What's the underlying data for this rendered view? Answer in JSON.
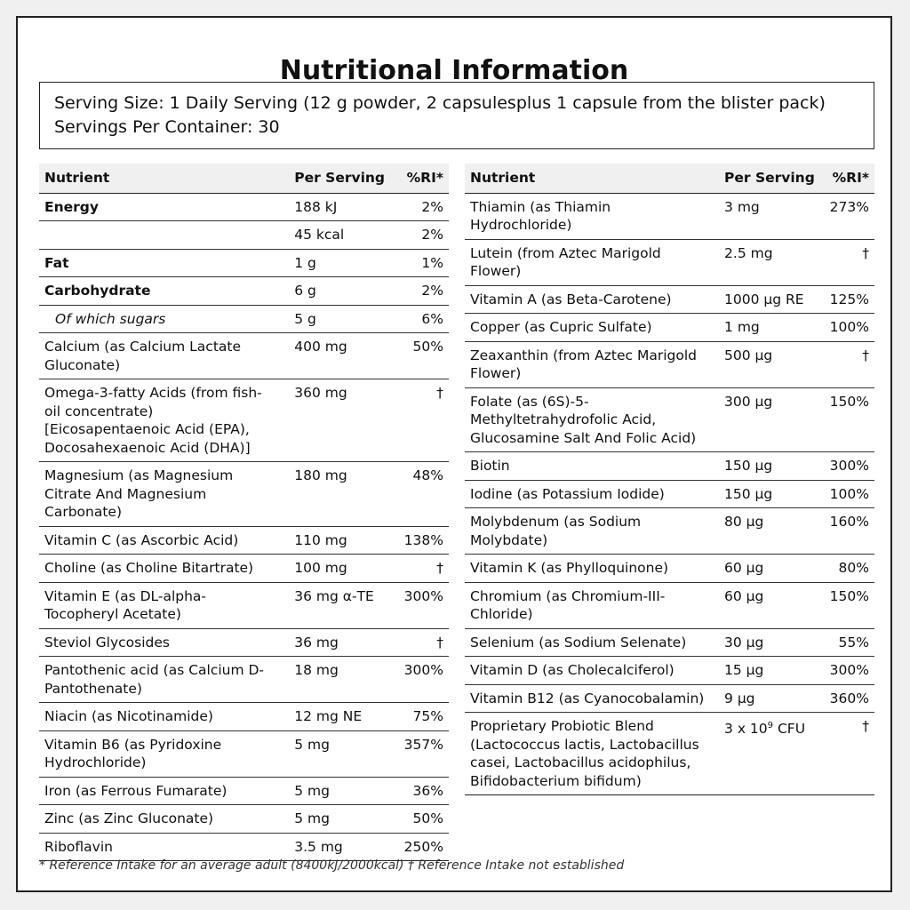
{
  "title": "Nutritional Information",
  "serving": {
    "size": "Serving Size: 1 Daily Serving (12 g powder, 2 capsulesplus 1 capsule from the blister pack)",
    "per_container": "Servings Per Container: 30"
  },
  "headers": {
    "nutrient": "Nutrient",
    "per_serving": "Per Serving",
    "ri": "%RI*"
  },
  "left_rows": [
    {
      "nutrient": "Energy",
      "amount": "188 kJ",
      "ri": "2%",
      "style": "bold"
    },
    {
      "nutrient": "",
      "amount": "45 kcal",
      "ri": "2%",
      "style": ""
    },
    {
      "nutrient": "Fat",
      "amount": "1 g",
      "ri": "1%",
      "style": "bold"
    },
    {
      "nutrient": "Carbohydrate",
      "amount": "6 g",
      "ri": "2%",
      "style": "bold"
    },
    {
      "nutrient": "Of which sugars",
      "amount": "5 g",
      "ri": "6%",
      "style": "ital"
    },
    {
      "nutrient": "Calcium (as Calcium Lactate Gluconate)",
      "amount": "400 mg",
      "ri": "50%",
      "style": ""
    },
    {
      "nutrient": "Omega-3-fatty Acids (from fish-oil concentrate) [Eicosapentaenoic Acid (EPA), Docosahexaenoic Acid (DHA)]",
      "amount": "360 mg",
      "ri": "†",
      "style": ""
    },
    {
      "nutrient": "Magnesium (as Magnesium Citrate And Magnesium Carbonate)",
      "amount": "180 mg",
      "ri": "48%",
      "style": ""
    },
    {
      "nutrient": "Vitamin C (as Ascorbic Acid)",
      "amount": "110 mg",
      "ri": "138%",
      "style": ""
    },
    {
      "nutrient": "Choline (as Choline Bitartrate)",
      "amount": "100 mg",
      "ri": "†",
      "style": ""
    },
    {
      "nutrient": "Vitamin E (as DL-alpha-Tocopheryl Acetate)",
      "amount": "36 mg α-TE",
      "ri": "300%",
      "style": ""
    },
    {
      "nutrient": "Steviol Glycosides",
      "amount": "36 mg",
      "ri": "†",
      "style": ""
    },
    {
      "nutrient": "Pantothenic acid (as Calcium D-Pantothenate)",
      "amount": "18 mg",
      "ri": "300%",
      "style": ""
    },
    {
      "nutrient": "Niacin (as Nicotinamide)",
      "amount": "12 mg NE",
      "ri": "75%",
      "style": ""
    },
    {
      "nutrient": "Vitamin B6 (as Pyridoxine Hydrochloride)",
      "amount": "5 mg",
      "ri": "357%",
      "style": ""
    },
    {
      "nutrient": "Iron (as Ferrous Fumarate)",
      "amount": "5 mg",
      "ri": "36%",
      "style": ""
    },
    {
      "nutrient": "Zinc (as Zinc Gluconate)",
      "amount": "5 mg",
      "ri": "50%",
      "style": ""
    },
    {
      "nutrient": "Riboflavin",
      "amount": "3.5 mg",
      "ri": "250%",
      "style": ""
    }
  ],
  "right_rows": [
    {
      "nutrient": "Thiamin (as Thiamin Hydrochloride)",
      "amount": "3 mg",
      "ri": "273%"
    },
    {
      "nutrient": "Lutein (from Aztec Marigold Flower)",
      "amount": "2.5 mg",
      "ri": "†"
    },
    {
      "nutrient": "Vitamin A (as Beta-Carotene)",
      "amount": "1000 µg RE",
      "ri": "125%"
    },
    {
      "nutrient": "Copper (as Cupric Sulfate)",
      "amount": "1 mg",
      "ri": "100%"
    },
    {
      "nutrient": "Zeaxanthin (from Aztec Marigold Flower)",
      "amount": "500 µg",
      "ri": "†"
    },
    {
      "nutrient": "Folate (as (6S)-5-Methyltetrahydrofolic Acid, Glucosamine Salt And Folic Acid)",
      "amount": "300 µg",
      "ri": "150%"
    },
    {
      "nutrient": "Biotin",
      "amount": "150 µg",
      "ri": "300%"
    },
    {
      "nutrient": "Iodine (as Potassium Iodide)",
      "amount": "150 µg",
      "ri": "100%"
    },
    {
      "nutrient": "Molybdenum (as Sodium Molybdate)",
      "amount": "80 µg",
      "ri": "160%"
    },
    {
      "nutrient": "Vitamin K (as Phylloquinone)",
      "amount": "60 µg",
      "ri": "80%"
    },
    {
      "nutrient": "Chromium (as Chromium-III-Chloride)",
      "amount": "60 µg",
      "ri": "150%"
    },
    {
      "nutrient": "Selenium (as Sodium Selenate)",
      "amount": "30 µg",
      "ri": "55%"
    },
    {
      "nutrient": "Vitamin D (as Cholecalciferol)",
      "amount": "15 µg",
      "ri": "300%"
    },
    {
      "nutrient": "Vitamin B12 (as Cyanocobalamin)",
      "amount": "9 µg",
      "ri": "360%"
    },
    {
      "nutrient": "Proprietary Probiotic Blend (Lactococcus lactis, Lactobacillus casei, Lactobacillus acidophilus, Bifidobacterium bifidum)",
      "amount_base": "3 x 10",
      "amount_exp": "9",
      "amount_unit": " CFU",
      "ri": "†"
    }
  ],
  "footnote": "* Reference Intake for an average adult (8400kJ/2000kcal) † Reference Intake not established"
}
